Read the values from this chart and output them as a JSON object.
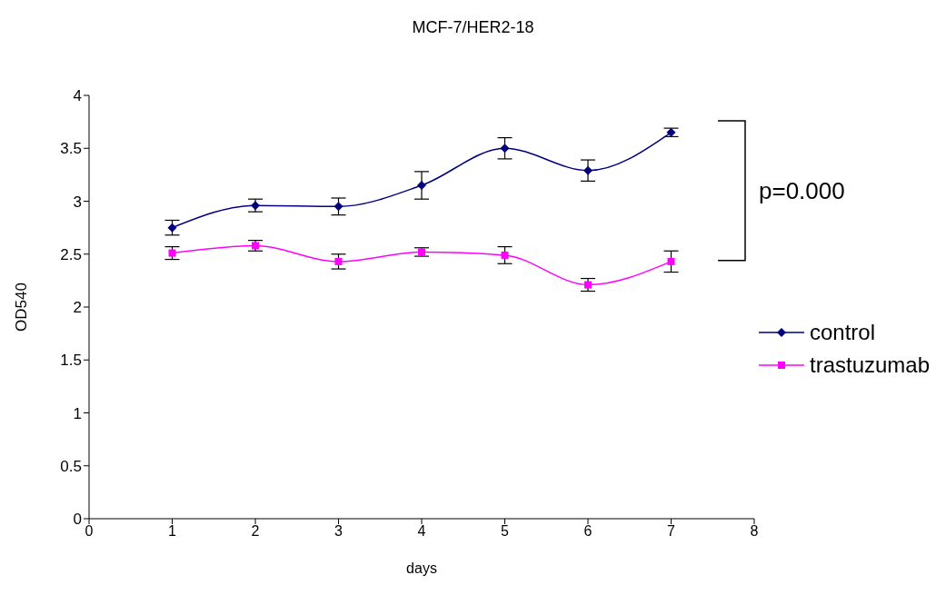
{
  "chart_data": {
    "type": "line",
    "title": "MCF-7/HER2-18",
    "xlabel": "days",
    "ylabel": "OD540",
    "x": [
      1,
      2,
      3,
      4,
      5,
      6,
      7
    ],
    "series": [
      {
        "name": "control",
        "color": "#000080",
        "marker": "diamond",
        "values": [
          2.75,
          2.96,
          2.95,
          3.15,
          3.5,
          3.29,
          3.65
        ],
        "errors": [
          0.07,
          0.06,
          0.08,
          0.13,
          0.1,
          0.1,
          0.04
        ]
      },
      {
        "name": "trastuzumab",
        "color": "#ff00ff",
        "marker": "square",
        "values": [
          2.51,
          2.58,
          2.43,
          2.52,
          2.49,
          2.21,
          2.43
        ],
        "errors": [
          0.06,
          0.05,
          0.07,
          0.04,
          0.08,
          0.06,
          0.1
        ]
      }
    ],
    "xlim": [
      0,
      8
    ],
    "xticks": [
      0,
      1,
      2,
      3,
      4,
      5,
      6,
      7,
      8
    ],
    "ylim": [
      0,
      4
    ],
    "yticks": [
      0,
      0.5,
      1,
      1.5,
      2,
      2.5,
      3,
      3.5,
      4
    ],
    "grid": false,
    "legend": "right",
    "line_style": "solid",
    "annotations": [
      "p=0.000"
    ]
  }
}
